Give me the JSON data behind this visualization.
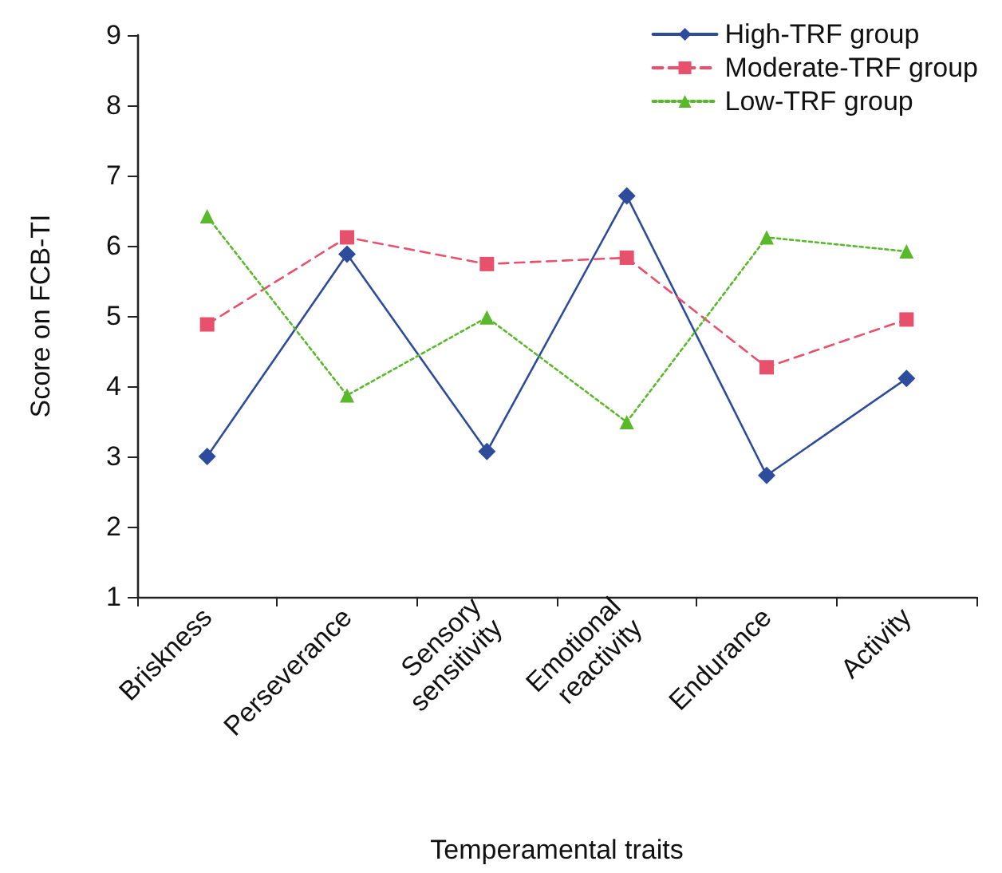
{
  "chart_data": {
    "type": "line",
    "xlabel": "Temperamental traits",
    "ylabel": "Score on FCB-TI",
    "categories": [
      "Briskness",
      "Perseverance",
      "Sensory\nsensitivity",
      "Emotional\nreactivity",
      "Endurance",
      "Activity"
    ],
    "series": [
      {
        "name": "High-TRF group",
        "color": "#2e4c9c",
        "marker": "diamond",
        "line_style": "solid",
        "values": [
          3.0,
          5.88,
          3.07,
          6.71,
          2.73,
          4.11
        ]
      },
      {
        "name": "Moderate-TRF group",
        "color": "#e8516b",
        "marker": "square",
        "line_style": "dashed",
        "values": [
          4.88,
          6.12,
          5.74,
          5.83,
          4.27,
          4.95
        ]
      },
      {
        "name": "Low-TRF group",
        "color": "#5ab92b",
        "marker": "triangle",
        "line_style": "dotted",
        "values": [
          6.42,
          3.87,
          4.98,
          3.49,
          6.12,
          5.92
        ]
      }
    ],
    "ylim": [
      1,
      9
    ],
    "yticks": [
      1,
      2,
      3,
      4,
      5,
      6,
      7,
      8,
      9
    ],
    "grid": false,
    "legend": "top right"
  }
}
